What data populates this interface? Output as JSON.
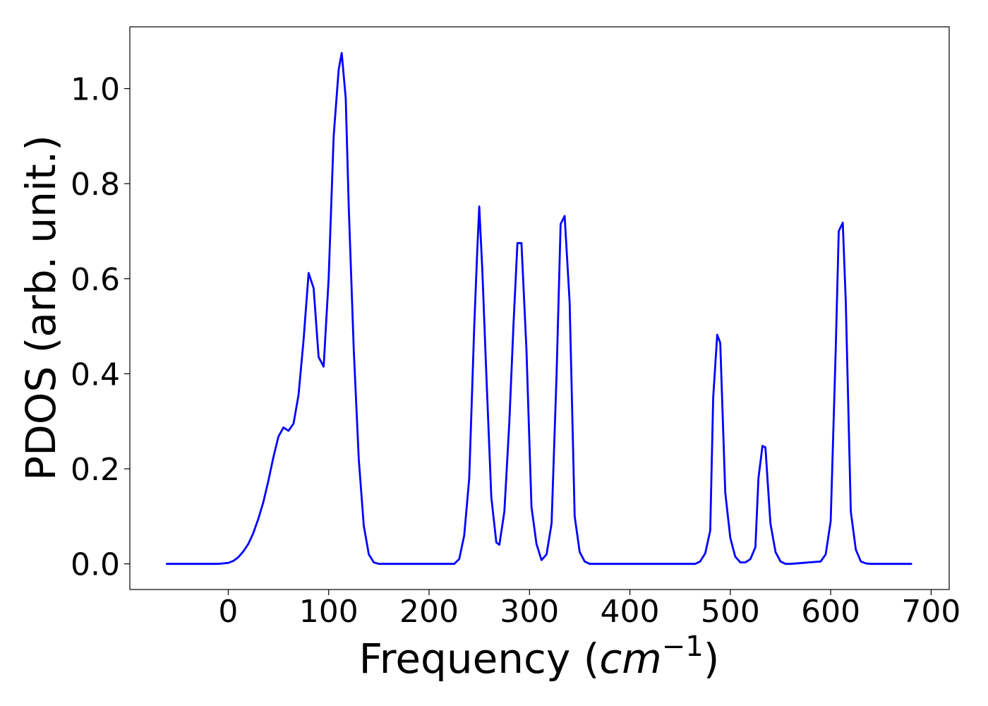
{
  "chart_data": {
    "type": "line",
    "xlabel_main": "Frequency (",
    "xlabel_italic": "cm",
    "xlabel_sup": "−1",
    "xlabel_close": ")",
    "ylabel": "PDOS (arb. unit.)",
    "xlim": [
      -98,
      718
    ],
    "ylim": [
      -0.054,
      1.13
    ],
    "x_ticks": [
      0,
      100,
      200,
      300,
      400,
      500,
      600,
      700
    ],
    "x_tick_labels": [
      "0",
      "100",
      "200",
      "300",
      "400",
      "500",
      "600",
      "700"
    ],
    "y_ticks": [
      0.0,
      0.2,
      0.4,
      0.6,
      0.8,
      1.0
    ],
    "y_tick_labels": [
      "0.0",
      "0.2",
      "0.4",
      "0.6",
      "0.8",
      "1.0"
    ],
    "grid": false,
    "line_color": "#0000ff",
    "series": [
      {
        "x": [
          -62,
          -10,
          -5,
          0,
          5,
          10,
          15,
          20,
          25,
          30,
          35,
          40,
          45,
          50,
          55,
          60,
          65,
          70,
          75,
          80,
          85,
          90,
          95,
          100,
          105,
          110,
          113,
          117,
          120,
          125,
          130,
          135,
          140,
          145,
          150,
          225,
          230,
          235,
          240,
          245,
          248,
          250,
          253,
          257,
          262,
          267,
          270,
          275,
          280,
          284,
          288,
          292,
          297,
          302,
          307,
          312,
          317,
          322,
          327,
          331,
          335,
          340,
          345,
          350,
          355,
          360,
          465,
          470,
          475,
          480,
          483,
          487,
          490,
          495,
          500,
          505,
          510,
          515,
          520,
          525,
          528,
          532,
          535,
          540,
          545,
          550,
          555,
          560,
          590,
          595,
          600,
          605,
          608,
          612,
          615,
          620,
          625,
          630,
          635,
          640,
          681
        ],
        "y": [
          0.0,
          0.0,
          0.001,
          0.002,
          0.006,
          0.014,
          0.026,
          0.042,
          0.065,
          0.095,
          0.13,
          0.175,
          0.225,
          0.268,
          0.287,
          0.28,
          0.295,
          0.355,
          0.47,
          0.612,
          0.58,
          0.435,
          0.415,
          0.6,
          0.9,
          1.04,
          1.075,
          0.98,
          0.75,
          0.45,
          0.22,
          0.08,
          0.02,
          0.003,
          0.0,
          0.0,
          0.01,
          0.06,
          0.18,
          0.5,
          0.66,
          0.752,
          0.62,
          0.4,
          0.14,
          0.045,
          0.04,
          0.11,
          0.3,
          0.5,
          0.675,
          0.675,
          0.45,
          0.12,
          0.042,
          0.008,
          0.02,
          0.085,
          0.4,
          0.715,
          0.732,
          0.55,
          0.1,
          0.025,
          0.005,
          0.0,
          0.0,
          0.005,
          0.022,
          0.07,
          0.35,
          0.482,
          0.465,
          0.15,
          0.055,
          0.015,
          0.003,
          0.003,
          0.01,
          0.035,
          0.18,
          0.248,
          0.245,
          0.085,
          0.025,
          0.005,
          0.0,
          0.0,
          0.005,
          0.02,
          0.09,
          0.45,
          0.7,
          0.718,
          0.55,
          0.11,
          0.03,
          0.005,
          0.001,
          0.0,
          0.0
        ]
      }
    ]
  }
}
